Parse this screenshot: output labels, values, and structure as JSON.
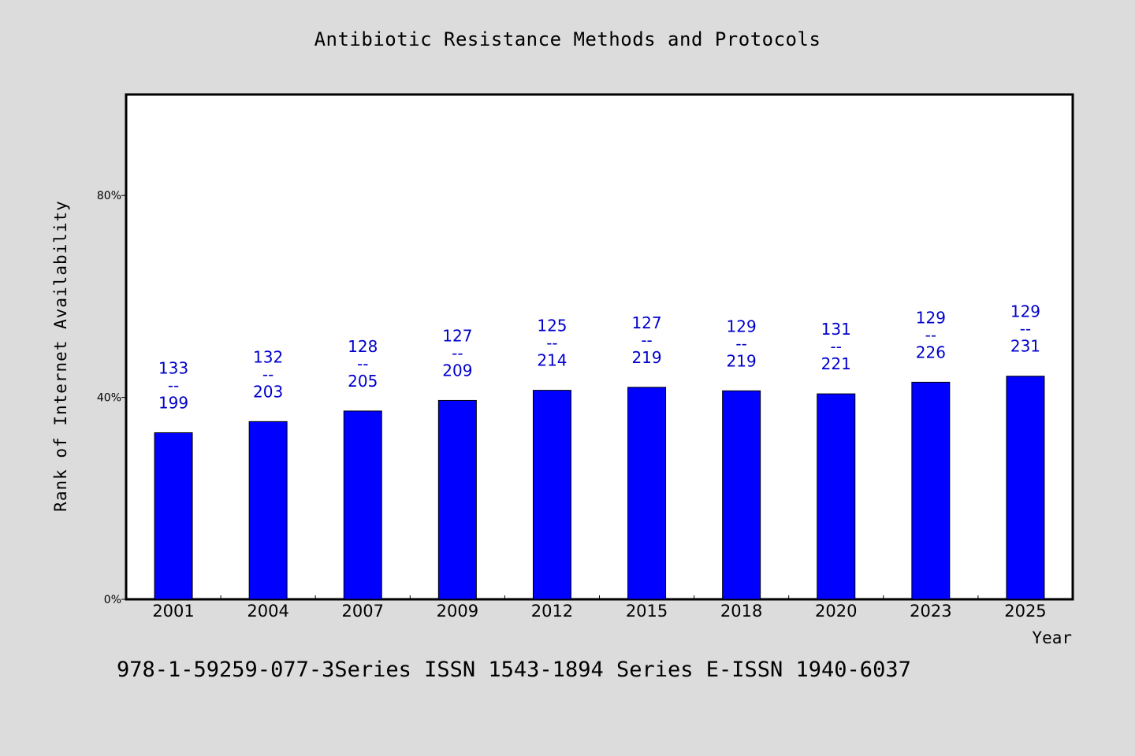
{
  "colors": {
    "background": "#dcdcdc",
    "plot_background": "#ffffff",
    "bar": "#0000ff",
    "label": "#0000cc",
    "axis": "#000000"
  },
  "footer": "978-1-59259-077-3Series ISSN 1543-1894 Series E-ISSN 1940-6037",
  "chart_data": {
    "type": "bar",
    "title": "Antibiotic Resistance Methods and Protocols",
    "xlabel": "Year",
    "ylabel": "Rank of Internet Availability",
    "ylim": [
      0,
      100
    ],
    "yticks": [
      {
        "value": 0,
        "label": "0%"
      },
      {
        "value": 40,
        "label": "40%"
      },
      {
        "value": 80,
        "label": "80%"
      }
    ],
    "grid": false,
    "categories": [
      "2001",
      "2004",
      "2007",
      "2009",
      "2012",
      "2015",
      "2018",
      "2020",
      "2023",
      "2025"
    ],
    "values": [
      33,
      35.2,
      37.3,
      39.4,
      41.4,
      42,
      41.3,
      40.7,
      43,
      44.2
    ],
    "labels": [
      {
        "top": "133",
        "mid": "--",
        "bottom": "199"
      },
      {
        "top": "132",
        "mid": "--",
        "bottom": "203"
      },
      {
        "top": "128",
        "mid": "--",
        "bottom": "205"
      },
      {
        "top": "127",
        "mid": "--",
        "bottom": "209"
      },
      {
        "top": "125",
        "mid": "--",
        "bottom": "214"
      },
      {
        "top": "127",
        "mid": "--",
        "bottom": "219"
      },
      {
        "top": "129",
        "mid": "--",
        "bottom": "219"
      },
      {
        "top": "131",
        "mid": "--",
        "bottom": "221"
      },
      {
        "top": "129",
        "mid": "--",
        "bottom": "226"
      },
      {
        "top": "129",
        "mid": "--",
        "bottom": "231"
      }
    ]
  }
}
